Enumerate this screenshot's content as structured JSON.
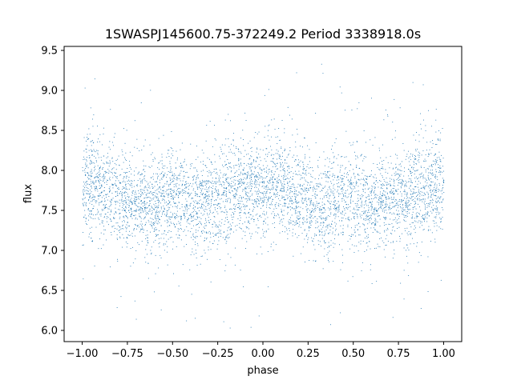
{
  "chart_data": {
    "type": "scatter",
    "title": "1SWASPJ145600.75-372249.2 Period 3338918.0s",
    "xlabel": "phase",
    "ylabel": "flux",
    "xlim": [
      -1.1,
      1.1
    ],
    "ylim": [
      5.86,
      9.55
    ],
    "xticks": [
      {
        "value": -1.0,
        "label": "−1.00"
      },
      {
        "value": -0.75,
        "label": "−0.75"
      },
      {
        "value": -0.5,
        "label": "−0.50"
      },
      {
        "value": -0.25,
        "label": "−0.25"
      },
      {
        "value": 0.0,
        "label": "0.00"
      },
      {
        "value": 0.25,
        "label": "0.25"
      },
      {
        "value": 0.5,
        "label": "0.50"
      },
      {
        "value": 0.75,
        "label": "0.75"
      },
      {
        "value": 1.0,
        "label": "1.00"
      }
    ],
    "yticks": [
      {
        "value": 6.0,
        "label": "6.0"
      },
      {
        "value": 6.5,
        "label": "6.5"
      },
      {
        "value": 7.0,
        "label": "7.0"
      },
      {
        "value": 7.5,
        "label": "7.5"
      },
      {
        "value": 8.0,
        "label": "8.0"
      },
      {
        "value": 8.5,
        "label": "8.5"
      },
      {
        "value": 9.0,
        "label": "9.0"
      },
      {
        "value": 9.5,
        "label": "9.5"
      }
    ],
    "grid": false,
    "marker_color": "#1f77b4",
    "series": [
      {
        "x_range": [
          -1.0,
          1.0
        ],
        "mean_flux_profile": [
          {
            "phase": -1.0,
            "flux": 7.82
          },
          {
            "phase": -0.9,
            "flux": 7.8
          },
          {
            "phase": -0.8,
            "flux": 7.7
          },
          {
            "phase": -0.7,
            "flux": 7.55
          },
          {
            "phase": -0.6,
            "flux": 7.62
          },
          {
            "phase": -0.5,
            "flux": 7.68
          },
          {
            "phase": -0.4,
            "flux": 7.58
          },
          {
            "phase": -0.3,
            "flux": 7.62
          },
          {
            "phase": -0.2,
            "flux": 7.7
          },
          {
            "phase": -0.1,
            "flux": 7.75
          },
          {
            "phase": 0.0,
            "flux": 7.82
          },
          {
            "phase": 0.1,
            "flux": 7.8
          },
          {
            "phase": 0.2,
            "flux": 7.7
          },
          {
            "phase": 0.3,
            "flux": 7.55
          },
          {
            "phase": 0.4,
            "flux": 7.62
          },
          {
            "phase": 0.5,
            "flux": 7.68
          },
          {
            "phase": 0.6,
            "flux": 7.58
          },
          {
            "phase": 0.7,
            "flux": 7.62
          },
          {
            "phase": 0.8,
            "flux": 7.7
          },
          {
            "phase": 0.9,
            "flux": 7.75
          },
          {
            "phase": 1.0,
            "flux": 7.82
          }
        ],
        "typical_scatter": 0.3,
        "flux_min": 6.0,
        "flux_max": 9.35
      }
    ]
  }
}
